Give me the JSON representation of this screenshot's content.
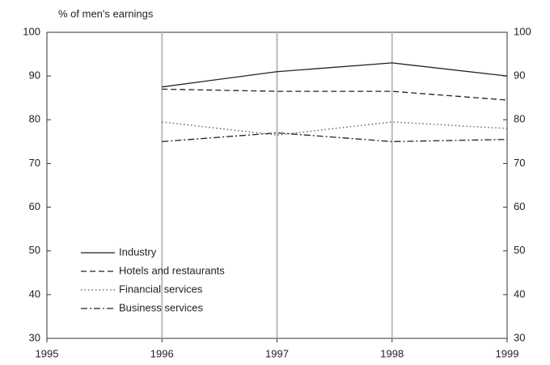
{
  "chart_data": {
    "type": "line",
    "y_label": "% of men's earnings",
    "x": [
      1996,
      1997,
      1998,
      1999
    ],
    "xlim": [
      1995,
      1999
    ],
    "xticks": [
      1995,
      1996,
      1997,
      1998,
      1999
    ],
    "ylim": [
      30,
      100
    ],
    "yticks": [
      30,
      40,
      50,
      60,
      70,
      80,
      90,
      100
    ],
    "y2lim": [
      30,
      100
    ],
    "y2ticks": [
      30,
      40,
      50,
      60,
      70,
      80,
      90,
      100
    ],
    "grid": "x",
    "legend": "lower left",
    "series": [
      {
        "name": "Industry",
        "color": "#222222",
        "linestyle": "solid",
        "values": [
          87.5,
          91,
          93,
          90
        ]
      },
      {
        "name": "Hotels and restaurants",
        "color": "#222222",
        "linestyle": "dashed",
        "values": [
          87,
          86.5,
          86.5,
          84.5
        ]
      },
      {
        "name": "Financial services",
        "color": "#555555",
        "linestyle": "dotted",
        "values": [
          79.5,
          76.5,
          79.5,
          78
        ]
      },
      {
        "name": "Business services",
        "color": "#222222",
        "linestyle": "dashdot",
        "values": [
          75,
          77,
          75,
          75.5
        ]
      }
    ]
  }
}
